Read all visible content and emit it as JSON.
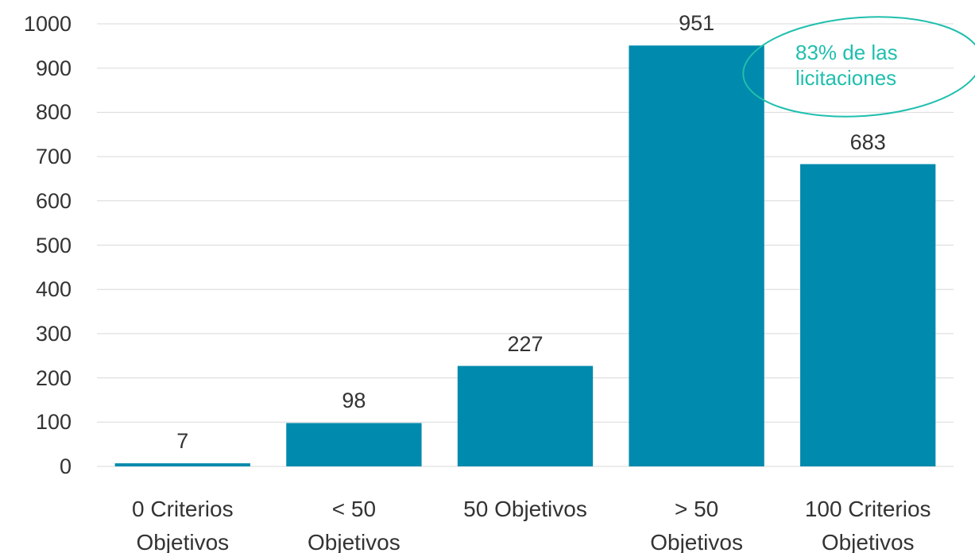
{
  "chart_data": {
    "type": "bar",
    "categories": [
      "0 Criterios\nObjetivos",
      "< 50\nObjetivos",
      "50 Objetivos",
      "> 50\nObjetivos",
      "100 Criterios\nObjetivos"
    ],
    "values": [
      7,
      98,
      227,
      951,
      683
    ],
    "color": "#008aad",
    "ylim": [
      0,
      1000
    ],
    "yticks": [
      0,
      100,
      200,
      300,
      400,
      500,
      600,
      700,
      800,
      900,
      1000
    ],
    "grid": true,
    "annotation": "83% de las\nlicitaciones",
    "annotation_color": "#1fbfae"
  }
}
